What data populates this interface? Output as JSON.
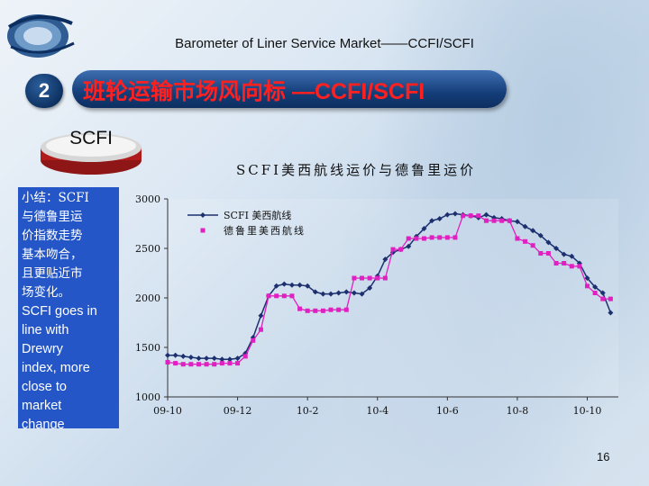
{
  "slide": {
    "title": "Barometer of Liner Service Market——CCFI/SCFI",
    "section_number": "2",
    "banner_text": "班轮运输市场风向标 —CCFI/SCFI",
    "badge_label": "SCFI",
    "note_zh": [
      "小结：SCFI",
      "与德鲁里运",
      "价指数走势",
      "基本吻合，",
      "且更贴近市",
      "场变化。"
    ],
    "note_en": [
      "SCFI goes in",
      "line with",
      "Drewry",
      "index, more",
      "close to",
      "market",
      "change"
    ],
    "page_number": "16"
  },
  "colors": {
    "banner": "#143e79",
    "banner_text": "#ff2020",
    "note_bg": "#2456c8",
    "scfi_series": "#1c2f6e",
    "drewry_series": "#e020c0"
  },
  "chart_data": {
    "type": "line",
    "title": "SCFI美西航线运价与德鲁里运价",
    "xlabel": "",
    "ylabel": "",
    "ylim": [
      1000,
      3000
    ],
    "yticks": [
      1000,
      1500,
      2000,
      2500,
      3000
    ],
    "x_tick_labels": [
      "09-10",
      "09-12",
      "10-2",
      "10-4",
      "10-6",
      "10-8",
      "10-10"
    ],
    "x_tick_positions": [
      0,
      9,
      18,
      27,
      36,
      45,
      54
    ],
    "x_range": [
      0,
      58
    ],
    "legend_position": "top-left",
    "series": [
      {
        "name": "SCFI 美西航线",
        "marker": "diamond",
        "x": [
          0,
          1,
          2,
          3,
          4,
          5,
          6,
          7,
          8,
          9,
          10,
          11,
          12,
          13,
          14,
          15,
          16,
          17,
          18,
          19,
          20,
          21,
          22,
          23,
          24,
          25,
          26,
          27,
          28,
          29,
          30,
          31,
          32,
          33,
          34,
          35,
          36,
          37,
          38,
          39,
          40,
          41,
          42,
          43,
          44,
          45,
          46,
          47,
          48,
          49,
          50,
          51,
          52,
          53,
          54,
          55,
          56,
          57
        ],
        "values": [
          1420,
          1420,
          1410,
          1400,
          1390,
          1390,
          1390,
          1380,
          1380,
          1390,
          1440,
          1600,
          1820,
          2020,
          2120,
          2140,
          2130,
          2130,
          2120,
          2060,
          2040,
          2040,
          2050,
          2060,
          2050,
          2040,
          2100,
          2220,
          2390,
          2460,
          2490,
          2520,
          2620,
          2700,
          2780,
          2800,
          2840,
          2850,
          2840,
          2830,
          2810,
          2840,
          2810,
          2800,
          2780,
          2770,
          2720,
          2680,
          2630,
          2560,
          2500,
          2440,
          2420,
          2350,
          2200,
          2110,
          2050,
          1850
        ]
      },
      {
        "name": "德鲁里美西航线",
        "marker": "square",
        "x": [
          0,
          1,
          2,
          3,
          4,
          5,
          6,
          7,
          8,
          9,
          10,
          11,
          12,
          13,
          14,
          15,
          16,
          17,
          18,
          19,
          20,
          21,
          22,
          23,
          24,
          25,
          26,
          27,
          28,
          29,
          30,
          31,
          32,
          33,
          34,
          35,
          36,
          37,
          38,
          39,
          40,
          41,
          42,
          43,
          44,
          45,
          46,
          47,
          48,
          49,
          50,
          51,
          52,
          53,
          54,
          55,
          56,
          57
        ],
        "values": [
          1350,
          1340,
          1330,
          1330,
          1330,
          1330,
          1330,
          1340,
          1340,
          1340,
          1410,
          1570,
          1680,
          2020,
          2020,
          2020,
          2020,
          1890,
          1870,
          1870,
          1870,
          1880,
          1880,
          1880,
          2200,
          2200,
          2200,
          2200,
          2200,
          2490,
          2490,
          2600,
          2600,
          2600,
          2610,
          2610,
          2610,
          2610,
          2830,
          2830,
          2830,
          2780,
          2780,
          2780,
          2780,
          2600,
          2570,
          2530,
          2450,
          2450,
          2350,
          2350,
          2320,
          2320,
          2120,
          2050,
          1990,
          1990
        ]
      }
    ]
  }
}
